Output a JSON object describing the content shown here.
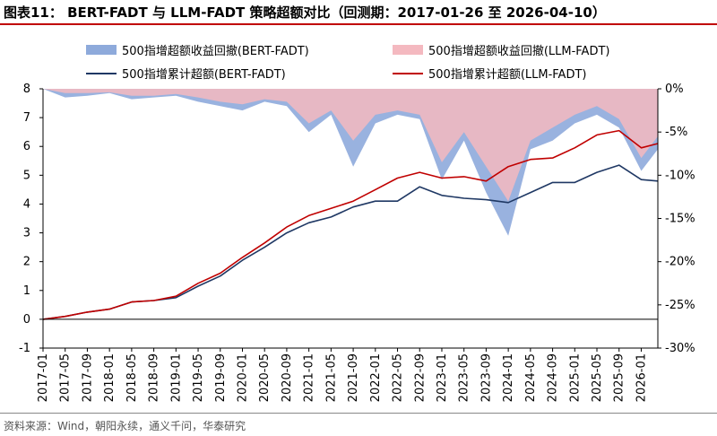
{
  "header": {
    "title": "图表11： BERT-FADT 与 LLM-FADT 策略超额对比（回测期：2017-01-26 至 2026-04-10）"
  },
  "footer": {
    "source": "资料来源：Wind，朝阳永续，通义千问，华泰研究"
  },
  "colors": {
    "bert_drawdown": "#8eaadb",
    "llm_drawdown": "#f4b9c0",
    "bert_cum": "#1f3864",
    "llm_cum": "#c00000",
    "title_rule": "#c00000"
  },
  "chart_data": {
    "type": "line",
    "x": [
      "2017-01",
      "2017-05",
      "2017-09",
      "2018-01",
      "2018-05",
      "2018-09",
      "2019-01",
      "2019-05",
      "2019-09",
      "2020-01",
      "2020-05",
      "2020-09",
      "2021-01",
      "2021-05",
      "2021-09",
      "2022-01",
      "2022-05",
      "2022-09",
      "2023-01",
      "2023-05",
      "2023-09",
      "2024-01",
      "2024-05",
      "2024-09",
      "2025-01",
      "2025-05",
      "2025-09",
      "2026-01",
      "2026-04"
    ],
    "x_tick_labels": [
      "2017-01",
      "2017-05",
      "2017-09",
      "2018-01",
      "2018-05",
      "2018-09",
      "2019-01",
      "2019-05",
      "2019-09",
      "2020-01",
      "2020-05",
      "2020-09",
      "2021-01",
      "2021-05",
      "2021-09",
      "2022-01",
      "2022-05",
      "2022-09",
      "2023-01",
      "2023-05",
      "2023-09",
      "2024-01",
      "2024-05",
      "2024-09",
      "2025-01",
      "2025-05",
      "2025-09",
      "2026-01"
    ],
    "y_left": {
      "ylim": [
        -1,
        8
      ],
      "ticks": [
        "-1",
        "0",
        "1",
        "2",
        "3",
        "4",
        "5",
        "6",
        "7",
        "8"
      ]
    },
    "y_right": {
      "ylim": [
        -30,
        0
      ],
      "ticks": [
        "-30%",
        "-25%",
        "-20%",
        "-15%",
        "-10%",
        "-5%",
        "0%"
      ]
    },
    "series": [
      {
        "name": "500指增超额收益回撤(BERT-FADT)",
        "type": "area",
        "axis": "right",
        "values": [
          0,
          -1.0,
          -0.8,
          -0.5,
          -1.2,
          -1.0,
          -0.8,
          -1.5,
          -2.0,
          -2.5,
          -1.5,
          -2.0,
          -5.0,
          -3.0,
          -9.0,
          -4.0,
          -3.0,
          -3.5,
          -10.5,
          -6.0,
          -12.0,
          -17.0,
          -7.0,
          -6.0,
          -4.0,
          -3.0,
          -4.5,
          -9.5,
          -7.0
        ]
      },
      {
        "name": "500指增超额收益回撤(LLM-FADT)",
        "type": "area",
        "axis": "right",
        "values": [
          0,
          -0.5,
          -0.5,
          -0.4,
          -0.8,
          -0.8,
          -0.6,
          -1.0,
          -1.5,
          -1.8,
          -1.2,
          -1.5,
          -4.0,
          -2.5,
          -6.0,
          -3.0,
          -2.5,
          -3.0,
          -8.5,
          -5.0,
          -9.0,
          -13.0,
          -6.0,
          -4.5,
          -3.0,
          -2.0,
          -3.5,
          -8.0,
          -5.5
        ]
      },
      {
        "name": "500指增累计超额(BERT-FADT)",
        "type": "line",
        "axis": "left",
        "values": [
          0,
          0.1,
          0.25,
          0.35,
          0.6,
          0.65,
          0.75,
          1.15,
          1.5,
          2.05,
          2.5,
          3.0,
          3.35,
          3.55,
          3.9,
          4.1,
          4.1,
          4.6,
          4.3,
          4.2,
          4.15,
          4.05,
          4.4,
          4.75,
          4.75,
          5.1,
          5.35,
          4.85,
          4.8
        ]
      },
      {
        "name": "500指增累计超额(LLM-FADT)",
        "type": "line",
        "axis": "left",
        "values": [
          0,
          0.1,
          0.25,
          0.35,
          0.6,
          0.65,
          0.8,
          1.25,
          1.6,
          2.15,
          2.65,
          3.2,
          3.6,
          3.85,
          4.1,
          4.5,
          4.9,
          5.1,
          4.9,
          4.95,
          4.8,
          5.3,
          5.55,
          5.6,
          5.95,
          6.4,
          6.55,
          5.95,
          6.1
        ]
      }
    ],
    "legend_placement": "top",
    "grid": false
  }
}
